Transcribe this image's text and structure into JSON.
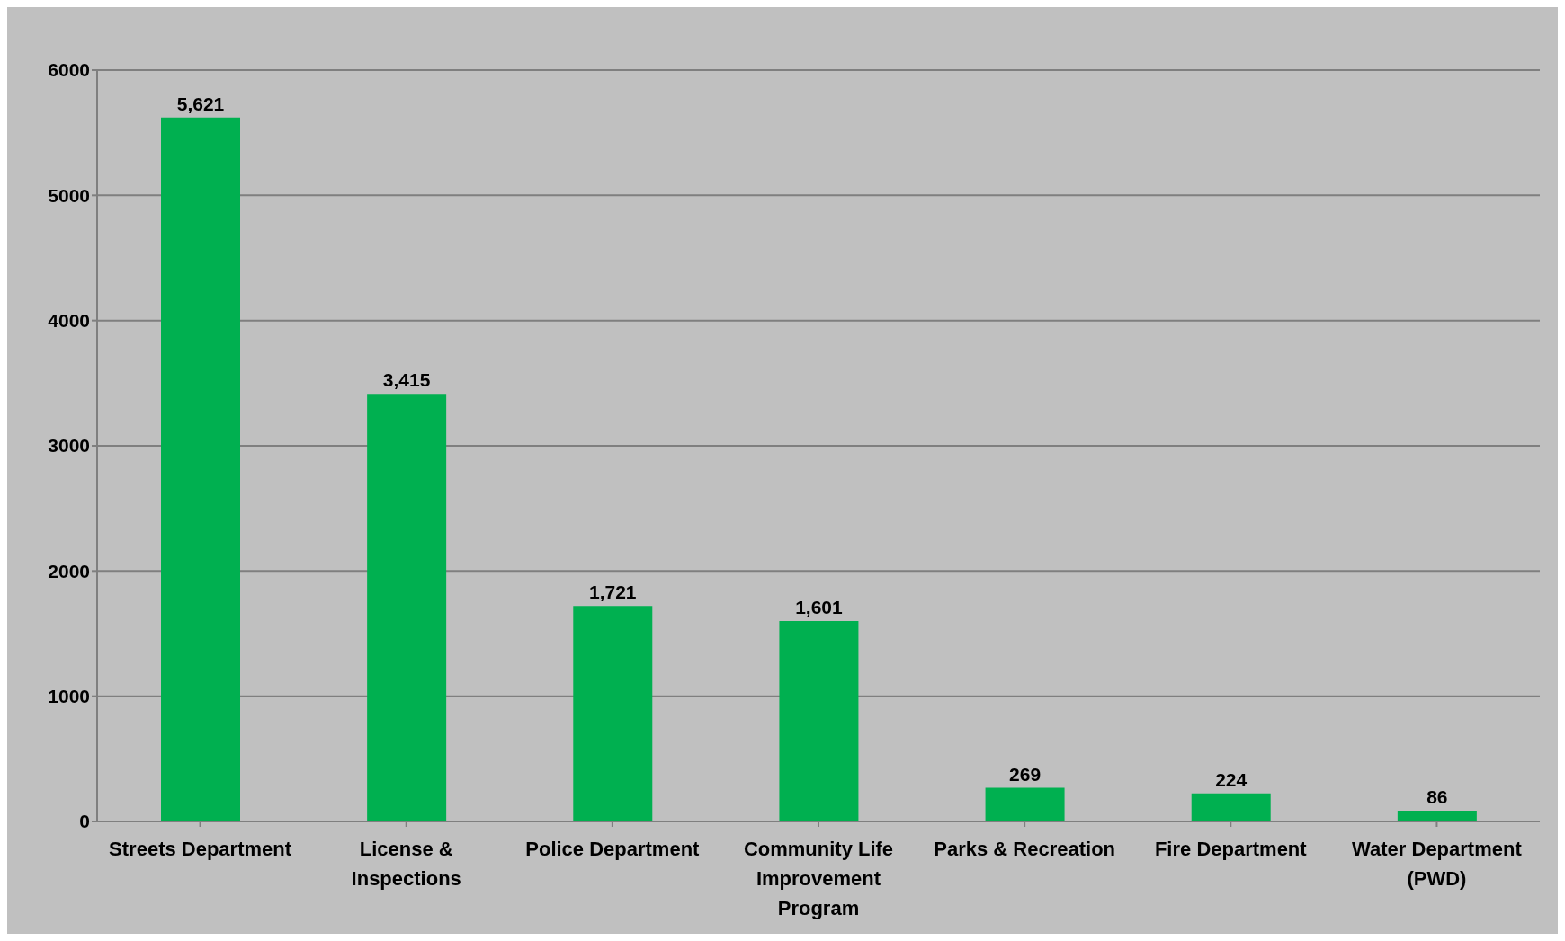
{
  "chart_data": {
    "type": "bar",
    "categories": [
      "Streets Department",
      "License & Inspections",
      "Police Department",
      "Community Life Improvement Program",
      "Parks & Recreation",
      "Fire Department",
      "Water Department (PWD)"
    ],
    "values": [
      5621,
      3415,
      1721,
      1601,
      269,
      224,
      86
    ],
    "color": "#00b050",
    "ylim": [
      0,
      6000
    ],
    "yticks": [
      0,
      1000,
      2000,
      3000,
      4000,
      5000,
      6000
    ],
    "value_labels": [
      "5,621",
      "3,415",
      "1,721",
      "1,601",
      "269",
      "224",
      "86"
    ],
    "grid": "y"
  }
}
